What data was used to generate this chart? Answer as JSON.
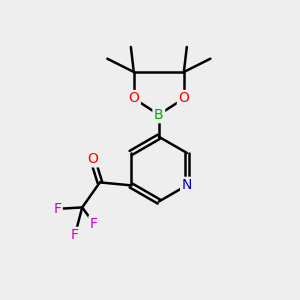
{
  "background_color": "#eeeeee",
  "figsize": [
    3.0,
    3.0
  ],
  "dpi": 100,
  "atom_colors": {
    "C": "#000000",
    "O": "#ff0000",
    "N": "#0000bb",
    "B": "#00aa00",
    "F": "#cc00cc"
  },
  "bond_color": "#000000",
  "bond_width": 1.8,
  "font_size_atom": 10
}
